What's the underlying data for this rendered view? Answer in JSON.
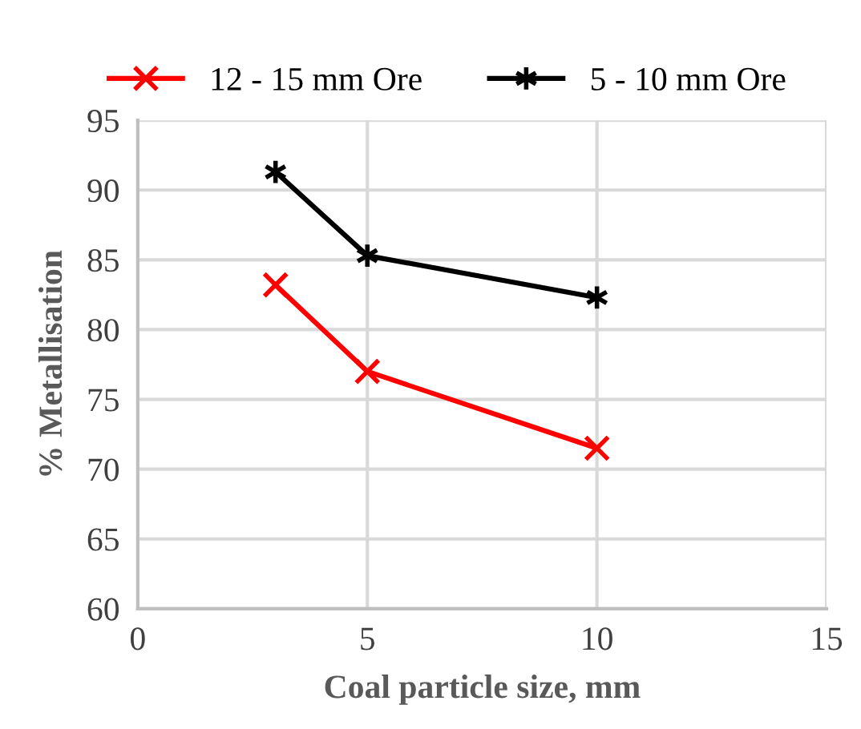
{
  "chart_data": {
    "type": "line",
    "xlabel": "Coal particle size, mm",
    "ylabel": "% Metallisation",
    "series": [
      {
        "name": "12 - 15 mm Ore",
        "color": "#ff0000",
        "marker": "cross",
        "x": [
          3,
          5,
          10
        ],
        "values": [
          83.2,
          77.0,
          71.5
        ]
      },
      {
        "name": "5 - 10 mm Ore",
        "color": "#000000",
        "marker": "cross",
        "x": [
          3,
          5,
          10
        ],
        "values": [
          91.3,
          85.3,
          82.3
        ]
      }
    ],
    "xlim": [
      0,
      15
    ],
    "xticks": [
      0,
      5,
      10,
      15
    ],
    "ylim": [
      60,
      95
    ],
    "yticks": [
      60,
      65,
      70,
      75,
      80,
      85,
      90,
      95
    ],
    "grid": true,
    "legend": "top",
    "line_style": "solid"
  }
}
